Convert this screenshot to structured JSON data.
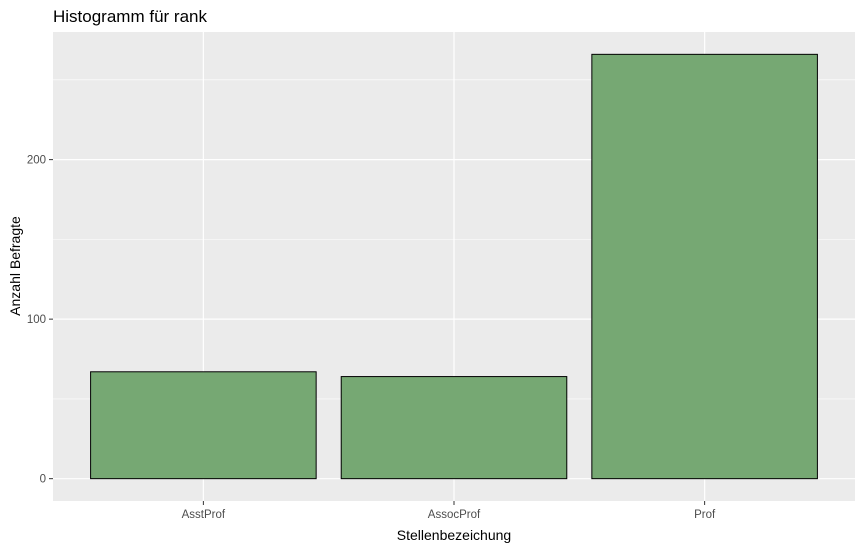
{
  "chart_data": {
    "type": "bar",
    "title": "Histogramm für rank",
    "xlabel": "Stellenbezeichung",
    "ylabel": "Anzahl Befragte",
    "categories": [
      "AsstProf",
      "AssocProf",
      "Prof"
    ],
    "values": [
      67,
      64,
      266
    ],
    "ylim": [
      -14,
      280
    ],
    "yticks": [
      0,
      100,
      200
    ],
    "ytick_labels": [
      "0",
      "100",
      "200"
    ],
    "grid": true,
    "legend": "none",
    "colors": {
      "panel_background": "#ebebeb",
      "grid": "#ffffff",
      "bar_fill": "#76a873",
      "bar_stroke": "#000000"
    }
  }
}
